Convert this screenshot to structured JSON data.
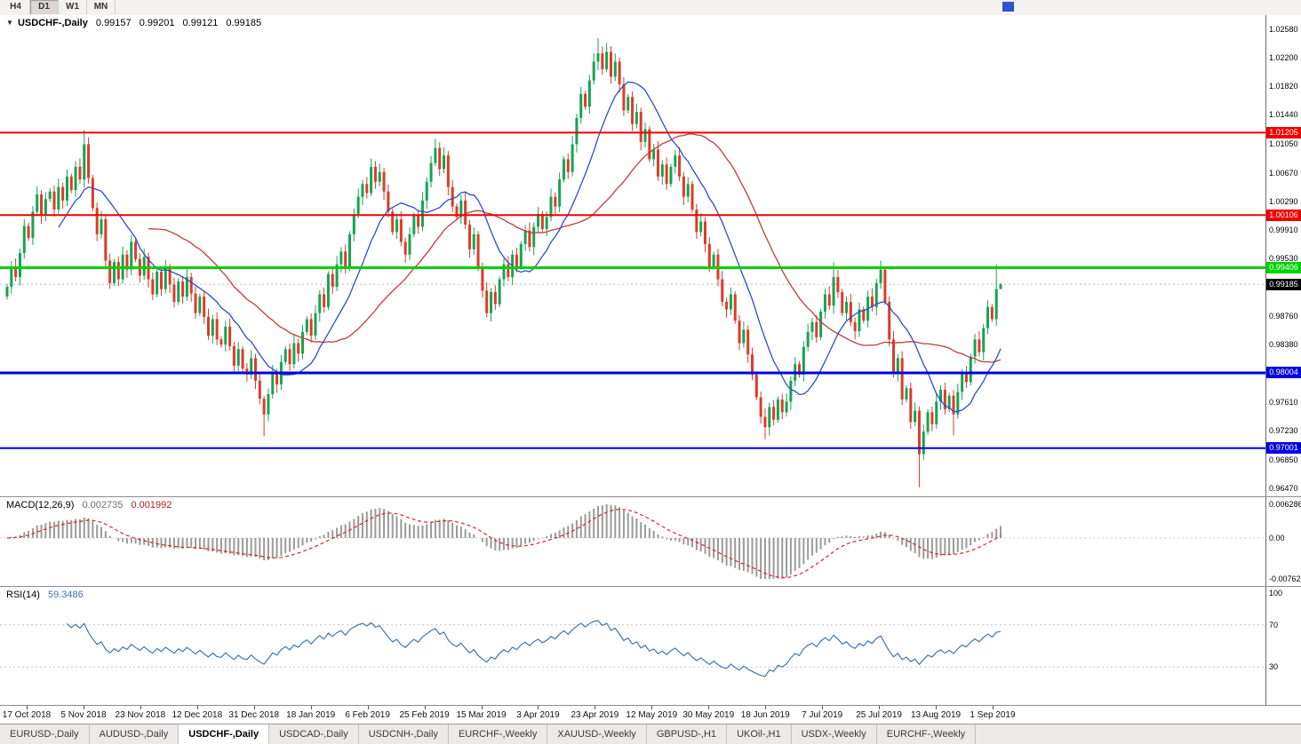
{
  "toolbar": {
    "period_buttons": [
      {
        "label": "H4",
        "active": false
      },
      {
        "label": "D1",
        "active": true
      },
      {
        "label": "W1",
        "active": false
      },
      {
        "label": "MN",
        "active": false
      }
    ],
    "scroll_marker_color": "#2f54cd"
  },
  "main_chart": {
    "title": {
      "symbol": "USDCHF-,Daily",
      "open": "0.99157",
      "high": "0.99201",
      "low": "0.99121",
      "close": "0.99185"
    },
    "price_axis": {
      "labels": [
        "1.02580",
        "1.02200",
        "1.01820",
        "1.01440",
        "1.01050",
        "1.00670",
        "1.00290",
        "0.99910",
        "0.99530",
        "0.98760",
        "0.98380",
        "0.97610",
        "0.97230",
        "0.96850",
        "0.96470"
      ]
    },
    "hlines": [
      {
        "value": 1.01205,
        "label": "1.01205",
        "color": "#f00000",
        "width": 2
      },
      {
        "value": 1.00106,
        "label": "1.00106",
        "color": "#f00000",
        "width": 2
      },
      {
        "value": 0.99406,
        "label": "0.99406",
        "color": "#00d200",
        "width": 3
      },
      {
        "value": 0.98004,
        "label": "0.98004",
        "color": "#0000e0",
        "width": 3
      },
      {
        "value": 0.97001,
        "label": "0.97001",
        "color": "#0000e0",
        "width": 2
      }
    ],
    "current_price": {
      "value": 0.99185,
      "label": "0.99185",
      "chip_bg": "#000000"
    }
  },
  "macd_panel": {
    "title": "MACD(12,26,9)",
    "value_main": "0.002735",
    "value_signal": "0.001992",
    "axis_labels": [
      "0.006286",
      "0.00",
      "-0.00762"
    ]
  },
  "rsi_panel": {
    "title": "RSI(14)",
    "value": "59.3486",
    "axis_labels": [
      "100",
      "70",
      "30"
    ]
  },
  "date_axis": {
    "labels": [
      "17 Oct 2018",
      "5 Nov 2018",
      "23 Nov 2018",
      "12 Dec 2018",
      "31 Dec 2018",
      "18 Jan 2019",
      "6 Feb 2019",
      "25 Feb 2019",
      "15 Mar 2019",
      "3 Apr 2019",
      "23 Apr 2019",
      "12 May 2019",
      "30 May 2019",
      "18 Jun 2019",
      "7 Jul 2019",
      "25 Jul 2019",
      "13 Aug 2019",
      "1 Sep 2019"
    ]
  },
  "bottom_tabs": {
    "items": [
      {
        "label": "EURUSD-,Daily",
        "active": false
      },
      {
        "label": "AUDUSD-,Daily",
        "active": false
      },
      {
        "label": "USDCHF-,Daily",
        "active": true
      },
      {
        "label": "USDCAD-,Daily",
        "active": false
      },
      {
        "label": "USDCNH-,Daily",
        "active": false
      },
      {
        "label": "EURCHF-,Weekly",
        "active": false
      },
      {
        "label": "XAUUSD-,Weekly",
        "active": false
      },
      {
        "label": "GBPUSD-,H1",
        "active": false
      },
      {
        "label": "UKOil-,H1",
        "active": false
      },
      {
        "label": "USDX-,Weekly",
        "active": false
      },
      {
        "label": "EURCHF-,Weekly",
        "active": false
      }
    ]
  },
  "chart_data": [
    {
      "type": "candlestick",
      "title": "USDCHF-,Daily",
      "timeframe": "Daily",
      "x_range": [
        "17 Oct 2018",
        "mid Sep 2019"
      ],
      "ylim": [
        0.9636,
        1.0277
      ],
      "last_candle_ohlc": [
        0.99157,
        0.99201,
        0.99121,
        0.99185
      ],
      "up_color": "#17a353",
      "down_color": "#dd3b2a",
      "ma_fast": {
        "type": "sma",
        "period": 13,
        "color": "#2a4fc5"
      },
      "ma_slow": {
        "type": "sma",
        "period": 34,
        "color": "#c23b3b"
      },
      "hline_values": [
        1.01205,
        1.00106,
        0.99406,
        0.98004,
        0.97001
      ],
      "first_open": 0.9902,
      "closes": [
        0.9915,
        0.9942,
        0.9928,
        0.996,
        0.9996,
        0.998,
        1.0015,
        1.0038,
        1.001,
        1.0032,
        1.0042,
        1.0018,
        1.0048,
        1.003,
        1.0062,
        1.0044,
        1.0075,
        1.0058,
        1.0105,
        1.006,
        1.002,
        0.9985,
        1.0005,
        0.995,
        0.992,
        0.9948,
        0.9925,
        0.9958,
        0.9938,
        0.9975,
        0.9952,
        0.993,
        0.9955,
        0.9925,
        0.9905,
        0.9935,
        0.9912,
        0.994,
        0.9918,
        0.9895,
        0.9922,
        0.9902,
        0.9928,
        0.9906,
        0.988,
        0.9902,
        0.9875,
        0.985,
        0.9872,
        0.9845,
        0.9838,
        0.9862,
        0.9836,
        0.981,
        0.9832,
        0.9806,
        0.9798,
        0.982,
        0.979,
        0.9766,
        0.9745,
        0.9772,
        0.98,
        0.9785,
        0.9815,
        0.9832,
        0.9812,
        0.984,
        0.9826,
        0.9855,
        0.9872,
        0.985,
        0.988,
        0.9905,
        0.9888,
        0.9932,
        0.9915,
        0.9945,
        0.9962,
        0.994,
        0.9985,
        1.0012,
        1.0035,
        1.0052,
        1.004,
        1.0075,
        1.0055,
        1.0068,
        1.0042,
        1.0015,
        0.9988,
        1.0005,
        0.9975,
        0.9958,
        0.9985,
        1.001,
        0.9995,
        1.003,
        1.0055,
        1.008,
        1.01,
        1.0072,
        1.009,
        1.0048,
        1.0022,
        1.0008,
        1.003,
        0.9998,
        0.9965,
        0.9985,
        0.994,
        0.991,
        0.988,
        0.9908,
        0.9892,
        0.9925,
        0.9945,
        0.9928,
        0.9958,
        0.9942,
        0.9972,
        0.999,
        0.9968,
        0.9995,
        1.0012,
        0.9992,
        1.0008,
        1.0035,
        1.0022,
        1.0058,
        1.0085,
        1.0068,
        1.0105,
        1.014,
        1.0172,
        1.0155,
        1.019,
        1.0215,
        1.0226,
        1.0205,
        1.0228,
        1.0195,
        1.0215,
        1.0185,
        1.015,
        1.0168,
        1.0132,
        1.0148,
        1.0108,
        1.0125,
        1.0085,
        1.0098,
        1.0062,
        1.0078,
        1.0052,
        1.0075,
        1.009,
        1.0062,
        1.0035,
        1.0052,
        1.0018,
        0.9988,
        1.0002,
        0.9972,
        0.9942,
        0.9958,
        0.9925,
        0.9895,
        0.9885,
        0.9905,
        0.987,
        0.984,
        0.9858,
        0.9825,
        0.9798,
        0.9768,
        0.9742,
        0.9728,
        0.9755,
        0.9738,
        0.9765,
        0.9748,
        0.9762,
        0.979,
        0.9812,
        0.9798,
        0.9835,
        0.9855,
        0.9868,
        0.9848,
        0.9882,
        0.9905,
        0.989,
        0.9928,
        0.9908,
        0.988,
        0.9895,
        0.9868,
        0.9856,
        0.9885,
        0.987,
        0.9902,
        0.9888,
        0.992,
        0.9938,
        0.9895,
        0.9845,
        0.98,
        0.982,
        0.9765,
        0.978,
        0.9735,
        0.975,
        0.9692,
        0.9722,
        0.9748,
        0.9732,
        0.9762,
        0.9778,
        0.9752,
        0.977,
        0.9745,
        0.9775,
        0.98,
        0.9788,
        0.9822,
        0.9845,
        0.9828,
        0.986,
        0.9888,
        0.9872,
        0.9912,
        0.99185
      ],
      "wick_overrides": {
        "18": {
          "high": 1.0124
        },
        "60": {
          "low": 0.9716
        },
        "85": {
          "high": 1.0086
        },
        "100": {
          "high": 1.0112
        },
        "138": {
          "high": 1.0246
        },
        "140": {
          "high": 1.024
        },
        "177": {
          "low": 0.9712
        },
        "193": {
          "high": 0.9948
        },
        "204": {
          "high": 0.995
        },
        "213": {
          "low": 0.9648
        },
        "221": {
          "low": 0.9717
        },
        "231": {
          "high": 0.9945
        },
        "232": {
          "high": 0.99201,
          "low": 0.99121
        }
      }
    },
    {
      "type": "macd",
      "title": "MACD(12,26,9)",
      "params": [
        12,
        26,
        9
      ],
      "current_macd": 0.002735,
      "current_signal": 0.001992,
      "ylim": [
        -0.00762,
        0.006286
      ],
      "histogram_color": "#9a9a9a",
      "signal_color": "#d02a2a",
      "derived_from": "chart_data[0].closes"
    },
    {
      "type": "line",
      "title": "RSI(14)",
      "period": 14,
      "current": 59.3486,
      "ylim": [
        0,
        100
      ],
      "levels": [
        70,
        30
      ],
      "line_color": "#4177ad",
      "derived_from": "chart_data[0].closes"
    }
  ]
}
